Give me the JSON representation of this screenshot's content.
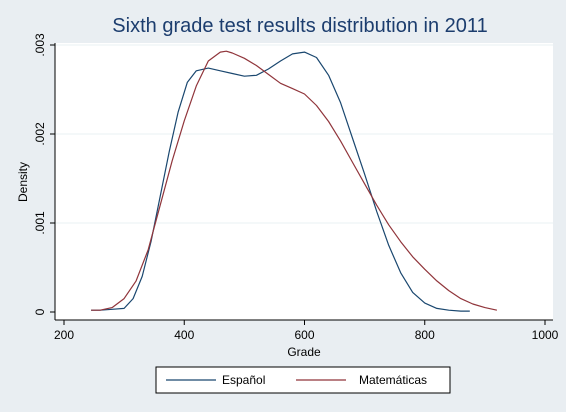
{
  "chart_data": {
    "type": "line",
    "title": "Sixth grade test results distribution in 2011",
    "xlabel": "Grade",
    "ylabel": "Density",
    "xlim": [
      200,
      1000
    ],
    "ylim": [
      0,
      0.003
    ],
    "x_ticks": [
      200,
      400,
      600,
      800,
      1000
    ],
    "x_tick_labels": [
      "200",
      "400",
      "600",
      "800",
      "1000"
    ],
    "y_ticks": [
      0,
      0.001,
      0.002,
      0.003
    ],
    "y_tick_labels": [
      "0",
      ".001",
      ".002",
      ".003"
    ],
    "grid": true,
    "legend_position": "bottom",
    "series": [
      {
        "name": "Español",
        "color": "#1a476f",
        "x": [
          245,
          260,
          280,
          300,
          315,
          330,
          345,
          360,
          375,
          390,
          405,
          420,
          440,
          460,
          480,
          500,
          520,
          540,
          560,
          580,
          600,
          620,
          640,
          660,
          680,
          700,
          720,
          740,
          760,
          780,
          800,
          820,
          840,
          860,
          875
        ],
        "y": [
          2e-05,
          2e-05,
          3e-05,
          4e-05,
          0.00015,
          0.0004,
          0.0008,
          0.0013,
          0.0018,
          0.00225,
          0.00258,
          0.00271,
          0.00274,
          0.00271,
          0.00268,
          0.00265,
          0.00266,
          0.00273,
          0.00282,
          0.0029,
          0.00292,
          0.00286,
          0.00266,
          0.00235,
          0.00195,
          0.00155,
          0.00113,
          0.00075,
          0.00044,
          0.00022,
          0.0001,
          4e-05,
          2e-05,
          1e-05,
          1e-05
        ]
      },
      {
        "name": "Matemáticas",
        "color": "#90353b",
        "x": [
          245,
          260,
          280,
          300,
          320,
          340,
          360,
          380,
          400,
          420,
          440,
          460,
          470,
          480,
          500,
          520,
          540,
          560,
          580,
          600,
          620,
          640,
          660,
          680,
          700,
          720,
          740,
          760,
          780,
          800,
          820,
          840,
          860,
          880,
          900,
          920
        ],
        "y": [
          2e-05,
          2e-05,
          5e-05,
          0.00015,
          0.00035,
          0.0007,
          0.0012,
          0.0017,
          0.00215,
          0.00254,
          0.00282,
          0.00292,
          0.00293,
          0.00291,
          0.00285,
          0.00277,
          0.00267,
          0.00257,
          0.00251,
          0.00245,
          0.00232,
          0.00214,
          0.00192,
          0.00168,
          0.00144,
          0.0012,
          0.00098,
          0.00079,
          0.00062,
          0.00048,
          0.00035,
          0.00024,
          0.00015,
          9e-05,
          5e-05,
          2e-05
        ]
      }
    ]
  }
}
